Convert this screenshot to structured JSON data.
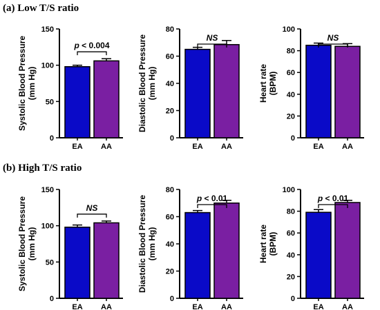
{
  "row_titles": [
    "(a) Low T/S ratio",
    "(b) High T/S ratio"
  ],
  "colors": {
    "EA": "#0a0ac8",
    "AA": "#7a1fa2",
    "axis": "#000000"
  },
  "chart_data": [
    {
      "type": "bar",
      "row": 0,
      "col": 0,
      "categories": [
        "EA",
        "AA"
      ],
      "values": [
        98,
        106
      ],
      "errors": [
        2,
        3
      ],
      "ylabel_lines": [
        "Systolic  Blood Pressure",
        "(mm Hg)"
      ],
      "ylim": [
        0,
        150
      ],
      "yticks": [
        0,
        50,
        100,
        150
      ],
      "annotation": {
        "prefix": "p",
        "rest": " < 0.004"
      }
    },
    {
      "type": "bar",
      "row": 0,
      "col": 1,
      "categories": [
        "EA",
        "AA"
      ],
      "values": [
        65,
        68.5
      ],
      "errors": [
        1.5,
        3
      ],
      "ylabel_lines": [
        "Diastolic  Blood Pressure",
        "(mm Hg)"
      ],
      "ylim": [
        0,
        80
      ],
      "yticks": [
        0,
        20,
        40,
        60,
        80
      ],
      "annotation": {
        "prefix": "NS",
        "rest": ""
      }
    },
    {
      "type": "bar",
      "row": 0,
      "col": 2,
      "categories": [
        "EA",
        "AA"
      ],
      "values": [
        85,
        84
      ],
      "errors": [
        2,
        2.5
      ],
      "ylabel_lines": [
        "Heart rate",
        "(BPM)"
      ],
      "ylim": [
        0,
        100
      ],
      "yticks": [
        0,
        20,
        40,
        60,
        80,
        100
      ],
      "annotation": {
        "prefix": "NS",
        "rest": ""
      }
    },
    {
      "type": "bar",
      "row": 1,
      "col": 0,
      "categories": [
        "EA",
        "AA"
      ],
      "values": [
        98,
        104
      ],
      "errors": [
        3,
        2.5
      ],
      "ylabel_lines": [
        "Systolic  Blood Pressure",
        "(mm Hg)"
      ],
      "ylim": [
        0,
        150
      ],
      "yticks": [
        0,
        50,
        100,
        150
      ],
      "annotation": {
        "prefix": "NS",
        "rest": ""
      }
    },
    {
      "type": "bar",
      "row": 1,
      "col": 1,
      "categories": [
        "EA",
        "AA"
      ],
      "values": [
        63,
        70
      ],
      "errors": [
        1.5,
        2
      ],
      "ylabel_lines": [
        "Diastolic  Blood Pressure",
        "(mm Hg)"
      ],
      "ylim": [
        0,
        80
      ],
      "yticks": [
        0,
        20,
        40,
        60,
        80
      ],
      "annotation": {
        "prefix": "p",
        "rest": " < 0.01"
      }
    },
    {
      "type": "bar",
      "row": 1,
      "col": 2,
      "categories": [
        "EA",
        "AA"
      ],
      "values": [
        79,
        88
      ],
      "errors": [
        2.5,
        2
      ],
      "ylabel_lines": [
        "Heart rate",
        "(BPM)"
      ],
      "ylim": [
        0,
        100
      ],
      "yticks": [
        0,
        20,
        40,
        60,
        80,
        100
      ],
      "annotation": {
        "prefix": "p",
        "rest": " < 0.01"
      }
    }
  ]
}
